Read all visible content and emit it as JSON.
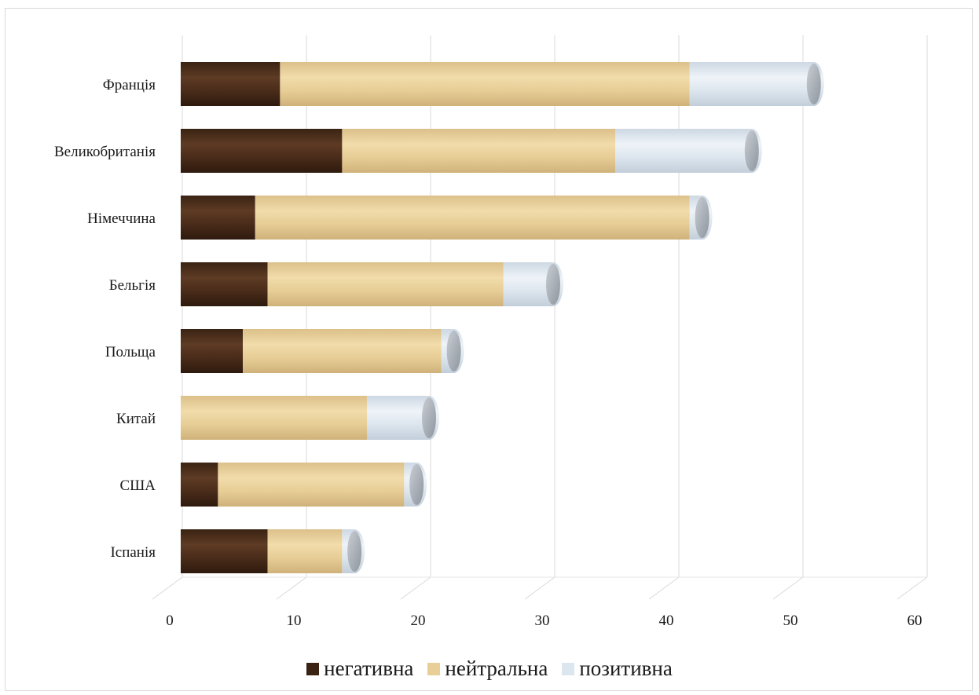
{
  "chart_data": {
    "type": "bar",
    "orientation": "horizontal",
    "stacked": true,
    "title": "",
    "xlabel": "",
    "ylabel": "",
    "xlim": [
      0,
      60
    ],
    "x_ticks": [
      "0",
      "10",
      "20",
      "30",
      "40",
      "50",
      "60"
    ],
    "categories": [
      "Франція",
      "Великобританія",
      "Німеччина",
      "Бельгія",
      "Польща",
      "Китай",
      "США",
      "Іспанія"
    ],
    "series": [
      {
        "name": "негативна",
        "color": "#4a2c1a",
        "values": [
          8,
          13,
          6,
          7,
          5,
          0,
          3,
          7
        ]
      },
      {
        "name": "нейтральна",
        "color": "#e9cf97",
        "values": [
          33,
          22,
          35,
          19,
          16,
          15,
          15,
          6
        ]
      },
      {
        "name": "позитивна",
        "color": "#dce6ef",
        "values": [
          10,
          11,
          1,
          4,
          1,
          5,
          1,
          1
        ]
      }
    ],
    "grid": "vertical",
    "legend_position": "bottom"
  }
}
